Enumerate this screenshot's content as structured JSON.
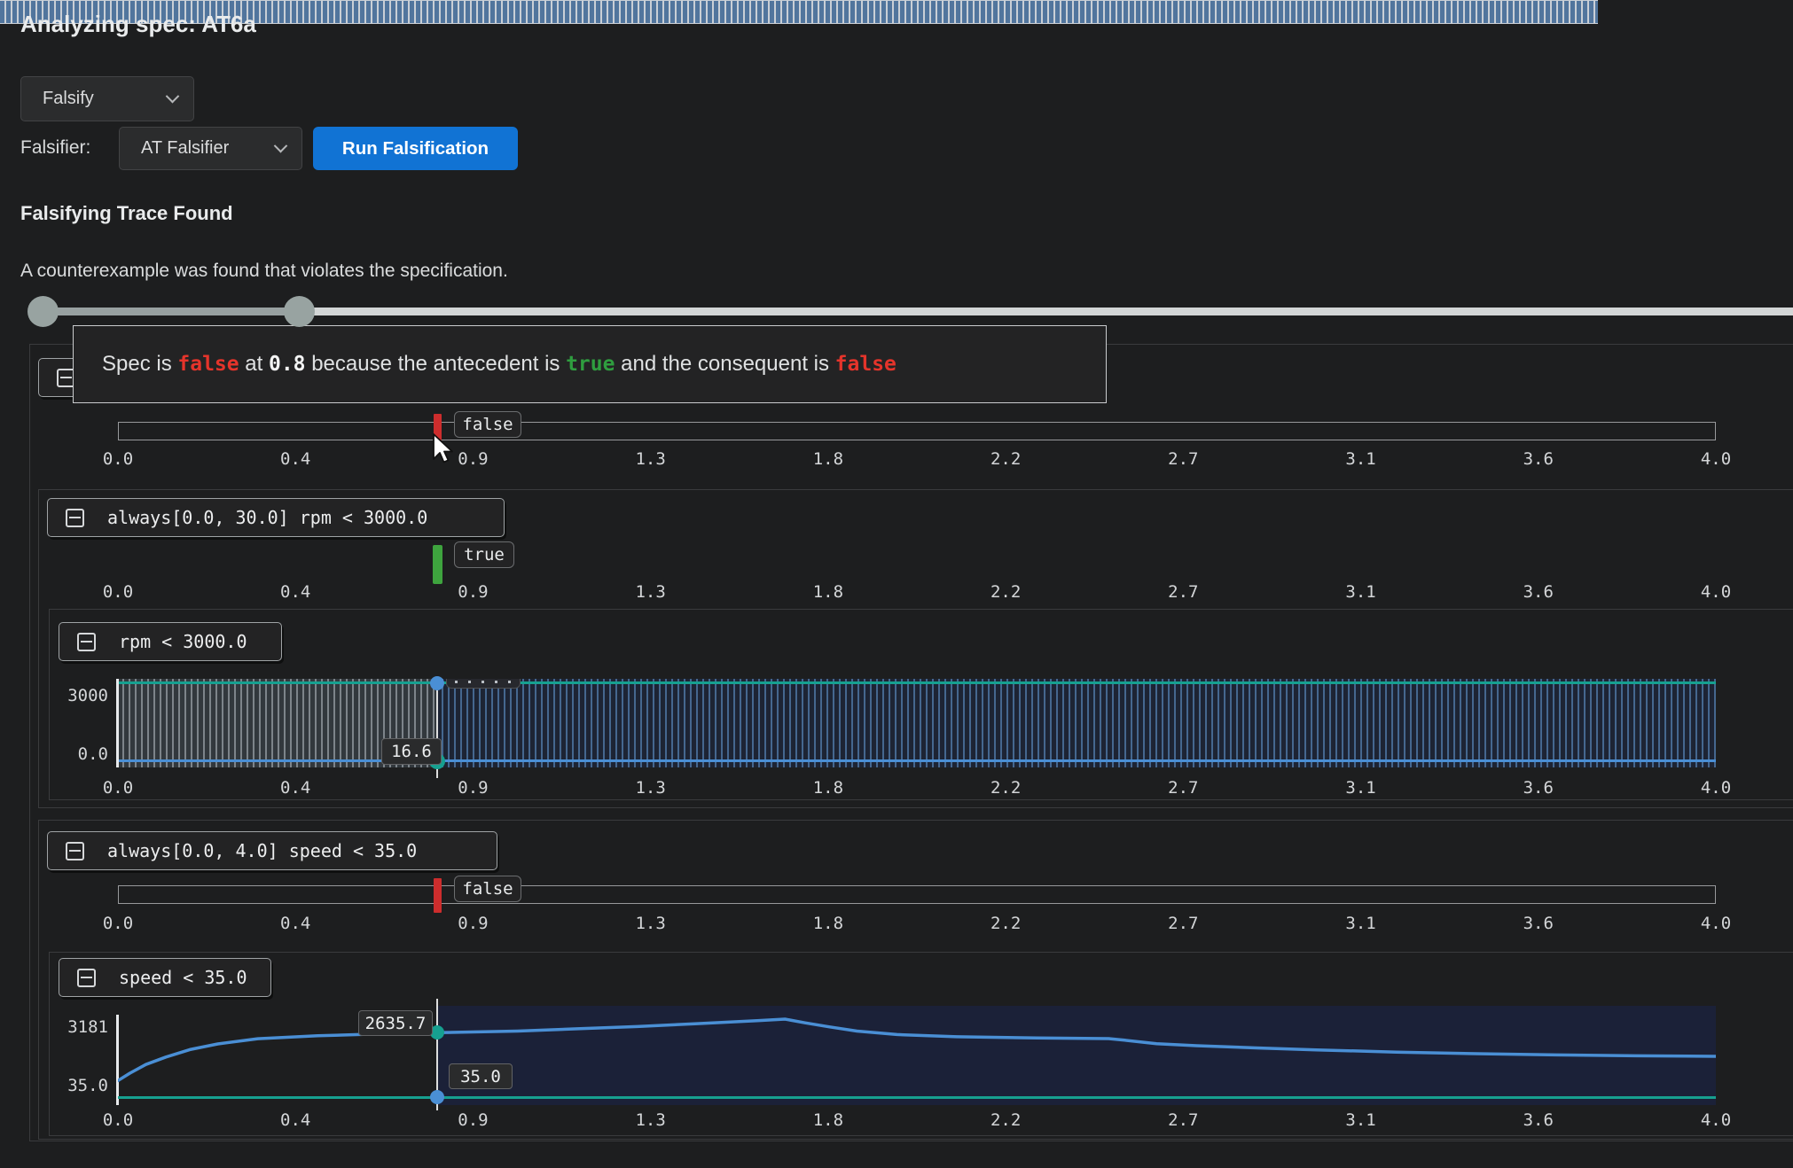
{
  "page": {
    "title": "Analyzing spec: AT6a"
  },
  "controls": {
    "mode_select_value": "Falsify",
    "falsifier_label": "Falsifier:",
    "falsifier_select_value": "AT Falsifier",
    "run_button_label": "Run Falsification"
  },
  "result": {
    "heading": "Falsifying Trace Found",
    "description": "A counterexample was found that violates the specification."
  },
  "tooltip": {
    "part1": "Spec is ",
    "verdict": "false",
    "part2": " at ",
    "time": "0.8",
    "part3": " because the antecedent is ",
    "antecedent_value": "true",
    "part4": " and the consequent is ",
    "consequent_value": "false"
  },
  "axis": {
    "ticks": [
      "0.0",
      "0.4",
      "0.9",
      "1.3",
      "1.8",
      "2.2",
      "2.7",
      "3.1",
      "3.6",
      "4.0"
    ]
  },
  "panels": {
    "spec": {
      "marker_label": "false"
    },
    "always_rpm": {
      "formula": "always[0.0, 30.0] rpm < 3000.0",
      "marker_label": "true"
    },
    "rpm": {
      "formula": "rpm < 3000.0",
      "y_top": "3000",
      "y_bottom": "0.0",
      "cursor_value": "16.6"
    },
    "always_speed": {
      "formula": "always[0.0, 4.0] speed < 35.0",
      "marker_label": "false"
    },
    "speed": {
      "formula": "speed < 35.0",
      "y_top": "3181",
      "y_bottom": "35.0",
      "cursor_curve_value": "2635.7",
      "cursor_threshold_value": "35.0"
    }
  },
  "colors": {
    "accent_blue": "#1173d4",
    "verdict_false_red": "#e5342b",
    "verdict_true_green": "#2f9e3f",
    "marker_red": "#cd2d2d",
    "marker_green": "#3ea43e",
    "signal_blue": "#4a8fd5",
    "threshold_teal": "#16a090",
    "hatch_blue": "#51759d",
    "region_navy": "#1b2138"
  },
  "chart_data": [
    {
      "id": "spec_verdict_timeline",
      "type": "timeline",
      "x_range": [
        0,
        4
      ],
      "x_ticks": [
        0.0,
        0.4,
        0.9,
        1.3,
        1.8,
        2.2,
        2.7,
        3.1,
        3.6,
        4.0
      ],
      "cursor_t": 0.8,
      "verdict_at_cursor": "false"
    },
    {
      "id": "always_rpm_verdict_timeline",
      "type": "timeline",
      "formula": "always[0.0, 30.0] rpm < 3000.0",
      "x_range": [
        0,
        4
      ],
      "cursor_t": 0.8,
      "verdict_at_cursor": "true",
      "fill": "hatched bar, satisfied over the full visible range"
    },
    {
      "id": "rpm_predicate_chart",
      "type": "line",
      "formula": "rpm < 3000.0",
      "x_range": [
        0,
        4
      ],
      "ylim": [
        0,
        3000
      ],
      "y_tick_labels": [
        "3000",
        "0.0"
      ],
      "cursor_t": 0.8,
      "series": [
        {
          "name": "upper-teal-line",
          "color": "#16a090",
          "shape": "approximately constant just below 3000 across 0..4"
        },
        {
          "name": "lower-blue-line",
          "color": "#4a8fd5",
          "shape": "approximately constant near 0 across 0..4",
          "value_at_cursor": 16.6
        }
      ],
      "regions": "left of cursor hatched gray, right of cursor hatched navy-blue"
    },
    {
      "id": "always_speed_verdict_timeline",
      "type": "timeline",
      "formula": "always[0.0, 4.0] speed < 35.0",
      "x_range": [
        0,
        4
      ],
      "cursor_t": 0.8,
      "verdict_at_cursor": "false"
    },
    {
      "id": "speed_predicate_chart",
      "type": "line",
      "formula": "speed < 35.0",
      "x_range": [
        0,
        4
      ],
      "ylim": [
        35.0,
        3181
      ],
      "y_tick_labels": [
        "3181",
        "35.0"
      ],
      "cursor_t": 0.8,
      "series": [
        {
          "name": "signal-curve",
          "color": "#4a8fd5",
          "value_at_cursor": 2635.7,
          "points": [
            [
              0,
              700
            ],
            [
              0.03,
              1000
            ],
            [
              0.07,
              1350
            ],
            [
              0.12,
              1650
            ],
            [
              0.18,
              1950
            ],
            [
              0.25,
              2180
            ],
            [
              0.35,
              2390
            ],
            [
              0.5,
              2510
            ],
            [
              0.65,
              2580
            ],
            [
              0.8,
              2635.7
            ],
            [
              1.0,
              2700
            ],
            [
              1.15,
              2790
            ],
            [
              1.3,
              2880
            ],
            [
              1.45,
              3000
            ],
            [
              1.6,
              3120
            ],
            [
              1.67,
              3181
            ],
            [
              1.72,
              3030
            ],
            [
              1.78,
              2870
            ],
            [
              1.85,
              2700
            ],
            [
              1.95,
              2560
            ],
            [
              2.1,
              2470
            ],
            [
              2.3,
              2420
            ],
            [
              2.48,
              2395
            ],
            [
              2.52,
              2330
            ],
            [
              2.6,
              2190
            ],
            [
              2.7,
              2110
            ],
            [
              2.85,
              2020
            ],
            [
              3.0,
              1940
            ],
            [
              3.2,
              1850
            ],
            [
              3.4,
              1785
            ],
            [
              3.6,
              1735
            ],
            [
              3.8,
              1700
            ],
            [
              4.0,
              1678
            ]
          ]
        },
        {
          "name": "threshold-line",
          "color": "#16a090",
          "constant": 35.0
        }
      ],
      "regions": "right of cursor shaded navy"
    }
  ]
}
